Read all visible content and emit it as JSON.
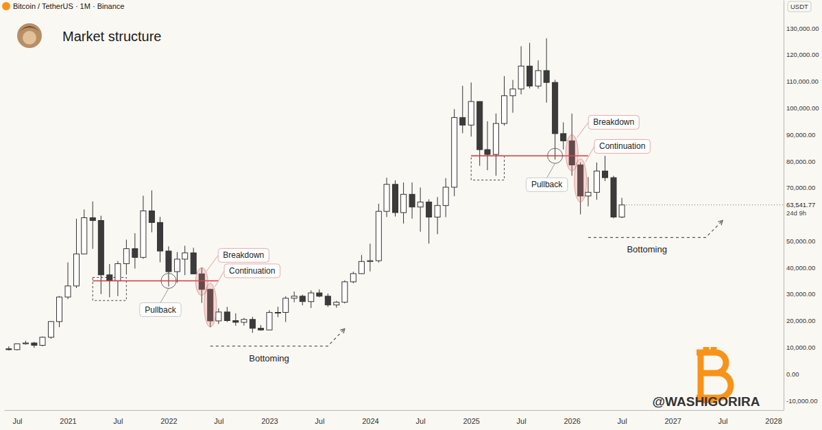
{
  "chart_data": {
    "type": "candlestick",
    "title": "Market structure",
    "subtitle": "Bitcoin / TetherUS · 1M · Binance",
    "y_axis_label": "USDT",
    "watermark": "@WASHIGORIRA",
    "grid": false,
    "x": [
      "2020-06",
      "2020-07",
      "2020-08",
      "2020-09",
      "2020-10",
      "2020-11",
      "2020-12",
      "2021-01",
      "2021-02",
      "2021-03",
      "2021-04",
      "2021-05",
      "2021-06",
      "2021-07",
      "2021-08",
      "2021-09",
      "2021-10",
      "2021-11",
      "2021-12",
      "2022-01",
      "2022-02",
      "2022-03",
      "2022-04",
      "2022-05",
      "2022-06",
      "2022-07",
      "2022-08",
      "2022-09",
      "2022-10",
      "2022-11",
      "2022-12",
      "2023-01",
      "2023-02",
      "2023-03",
      "2023-04",
      "2023-05",
      "2023-06",
      "2023-07",
      "2023-08",
      "2023-09",
      "2023-10",
      "2023-11",
      "2023-12",
      "2024-01",
      "2024-02",
      "2024-03",
      "2024-04",
      "2024-05",
      "2024-06",
      "2024-07",
      "2024-08",
      "2024-09",
      "2024-10",
      "2024-11",
      "2024-12",
      "2025-01",
      "2025-02",
      "2025-03",
      "2025-04",
      "2025-05",
      "2025-06",
      "2025-07",
      "2025-08",
      "2025-09",
      "2025-10",
      "2025-11",
      "2025-12",
      "2026-01",
      "2026-02",
      "2026-03",
      "2026-04",
      "2026-05",
      "2026-06",
      "2026-07"
    ],
    "open": [
      9446,
      9138,
      11335,
      11650,
      10776,
      13797,
      19696,
      28923,
      33092,
      45135,
      58740,
      57694,
      37253,
      35045,
      41461,
      47100,
      43824,
      61300,
      56950,
      46216,
      38466,
      43160,
      45510,
      37630,
      31801,
      19942,
      23293,
      20050,
      19423,
      20491,
      17163,
      16542,
      23125,
      23141,
      28465,
      29233,
      27210,
      30472,
      29232,
      25941,
      26963,
      34640,
      37724,
      42284,
      42580,
      61130,
      71280,
      60672,
      67540,
      62772,
      64628,
      58974,
      63328,
      70215,
      96407,
      93576,
      102429,
      84350,
      82548,
      94172,
      104592,
      107135,
      115764,
      108246,
      114049,
      109608,
      90360,
      87650,
      78600,
      66900,
      68300,
      76300,
      73800,
      59000
    ],
    "high": [
      10380,
      11444,
      12468,
      12050,
      14100,
      19863,
      29300,
      41950,
      58352,
      61844,
      64854,
      59500,
      41330,
      42448,
      50500,
      52920,
      67000,
      69000,
      59053,
      47990,
      45821,
      48189,
      47444,
      40023,
      31982,
      24668,
      25211,
      22800,
      21085,
      21480,
      18387,
      23960,
      25250,
      29184,
      31000,
      29820,
      31431,
      31804,
      30244,
      27483,
      35198,
      38450,
      44700,
      48969,
      64000,
      73777,
      72797,
      71979,
      71997,
      70080,
      65660,
      66500,
      73620,
      99588,
      108353,
      109588,
      102500,
      95000,
      97938,
      111980,
      110530,
      123218,
      124474,
      117900,
      126200,
      110600,
      94600,
      97900,
      79500,
      74000,
      79500,
      82000,
      74500,
      66200
    ],
    "low": [
      8833,
      8893,
      11000,
      9825,
      10375,
      13195,
      17572,
      28130,
      32296,
      44950,
      47044,
      30000,
      28805,
      29278,
      37332,
      39600,
      43283,
      53256,
      42000,
      32917,
      34322,
      37155,
      37578,
      26700,
      17622,
      18781,
      19520,
      18125,
      18190,
      15476,
      16256,
      16500,
      21351,
      19549,
      26942,
      25811,
      24800,
      28861,
      25166,
      24901,
      26538,
      34097,
      37617,
      38555,
      41884,
      59005,
      59191,
      56552,
      58402,
      53485,
      49000,
      52550,
      58946,
      66835,
      90500,
      89256,
      78258,
      76606,
      74508,
      93377,
      98200,
      105100,
      107350,
      107255,
      102000,
      80600,
      84400,
      74500,
      60000,
      63000,
      65500,
      72500,
      58500,
      58600
    ],
    "close": [
      9138,
      11335,
      11650,
      10776,
      13797,
      19696,
      28923,
      33092,
      45135,
      58740,
      57694,
      37253,
      35045,
      41461,
      47100,
      43824,
      61300,
      56950,
      46216,
      38466,
      43160,
      45510,
      37630,
      31801,
      19942,
      23293,
      20050,
      19423,
      20491,
      17163,
      16542,
      23125,
      23141,
      28465,
      29233,
      27210,
      30472,
      29232,
      25941,
      26963,
      34640,
      37724,
      42284,
      42580,
      61130,
      71280,
      60672,
      67540,
      62772,
      64628,
      58974,
      63328,
      70215,
      96407,
      93576,
      102429,
      84350,
      82548,
      94172,
      104592,
      107135,
      115764,
      108246,
      114049,
      109608,
      90360,
      87650,
      78600,
      66900,
      68300,
      76300,
      73800,
      59000,
      63541.77
    ],
    "xlim": [
      "2020-05-15",
      "2028-02-07"
    ],
    "xticks": [
      {
        "value": "2020-07",
        "label": "Jul"
      },
      {
        "value": "2021-01",
        "label": "2021"
      },
      {
        "value": "2021-07",
        "label": "Jul"
      },
      {
        "value": "2022-01",
        "label": "2022"
      },
      {
        "value": "2022-07",
        "label": "Jul"
      },
      {
        "value": "2023-01",
        "label": "2023"
      },
      {
        "value": "2023-07",
        "label": "Jul"
      },
      {
        "value": "2024-01",
        "label": "2024"
      },
      {
        "value": "2024-07",
        "label": "Jul"
      },
      {
        "value": "2025-01",
        "label": "2025"
      },
      {
        "value": "2025-07",
        "label": "Jul"
      },
      {
        "value": "2026-01",
        "label": "2026"
      },
      {
        "value": "2026-07",
        "label": "Jul"
      },
      {
        "value": "2027-01",
        "label": "2027"
      },
      {
        "value": "2027-07",
        "label": "Jul"
      },
      {
        "value": "2028-01",
        "label": "2028"
      }
    ],
    "ylim": [
      -13600,
      140600
    ],
    "yticks": [
      {
        "value": 130000,
        "label": "130,000.00"
      },
      {
        "value": 120000,
        "label": "120,000.00"
      },
      {
        "value": 110000,
        "label": "110,000.00"
      },
      {
        "value": 100000,
        "label": "100,000.00"
      },
      {
        "value": 90000,
        "label": "90,000.00"
      },
      {
        "value": 80000,
        "label": "80,000.00"
      },
      {
        "value": 70000,
        "label": "70,000.00"
      },
      {
        "value": 50000,
        "label": "50,000.00"
      },
      {
        "value": 40000,
        "label": "40,000.00"
      },
      {
        "value": 30000,
        "label": "30,000.00"
      },
      {
        "value": 20000,
        "label": "20,000.00"
      },
      {
        "value": 10000,
        "label": "10,000.00"
      },
      {
        "value": 0,
        "label": "0.00"
      },
      {
        "value": -10000,
        "label": "-10,000.00"
      }
    ],
    "last_price": {
      "value": 63541.77,
      "label": "63,541.77",
      "countdown": "24d 9h"
    },
    "levels": [
      {
        "x": [
          "2021-04",
          "2022-07"
        ],
        "y": 35000
      },
      {
        "x": [
          "2025-01",
          "2026-03"
        ],
        "y": 82000
      }
    ],
    "boxes": [
      {
        "x": [
          "2021-04",
          "2021-08"
        ],
        "y": [
          27600,
          36300
        ]
      },
      {
        "x": [
          "2025-01",
          "2025-05"
        ],
        "y": [
          72900,
          82000
        ]
      }
    ],
    "pullbacks": [
      {
        "text": "Pullback",
        "x": "2022-01",
        "y": 35000
      },
      {
        "text": "Pullback",
        "x": "2025-11",
        "y": 82000
      }
    ],
    "highlights": [
      {
        "text": "Breakdown",
        "x": "2022-05"
      },
      {
        "text": "Continuation",
        "x": "2022-06"
      },
      {
        "text": "Breakdown",
        "x": "2026-01"
      },
      {
        "text": "Continuation",
        "x": "2026-02"
      }
    ],
    "bottoming": [
      {
        "text": "Bottoming",
        "x": [
          "2022-06",
          "2023-08",
          "2023-10"
        ],
        "y": [
          10500,
          10500,
          17000
        ]
      },
      {
        "text": "Bottoming",
        "x": [
          "2026-03",
          "2027-05",
          "2027-07"
        ],
        "y": [
          51300,
          51300,
          57700
        ]
      }
    ]
  }
}
